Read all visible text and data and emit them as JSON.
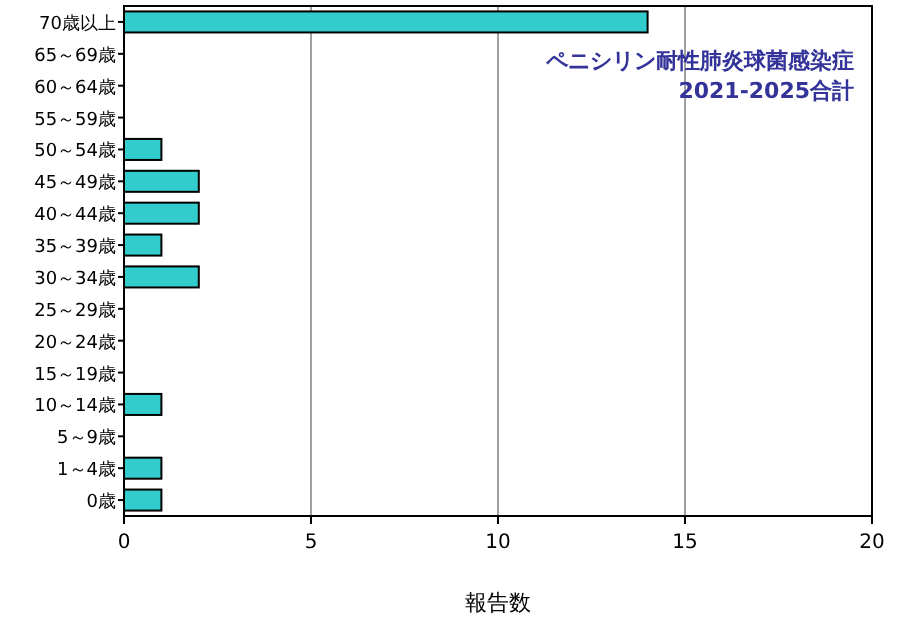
{
  "chart_data": {
    "type": "bar",
    "orientation": "horizontal",
    "title": "ペニシリン耐性肺炎球菌感染症\n2021-2025合計",
    "xlabel": "報告数",
    "categories": [
      "70歳以上",
      "65～69歳",
      "60～64歳",
      "55～59歳",
      "50～54歳",
      "45～49歳",
      "40～44歳",
      "35～39歳",
      "30～34歳",
      "25～29歳",
      "20～24歳",
      "15～19歳",
      "10～14歳",
      "5～9歳",
      "1～4歳",
      "0歳"
    ],
    "values": [
      14,
      0,
      0,
      0,
      1,
      2,
      2,
      1,
      2,
      0,
      0,
      0,
      1,
      0,
      1,
      1
    ],
    "color": "#33cccc",
    "xlim": [
      0,
      20
    ],
    "xticks": [
      0,
      5,
      10,
      15,
      20
    ],
    "grid": "x"
  }
}
